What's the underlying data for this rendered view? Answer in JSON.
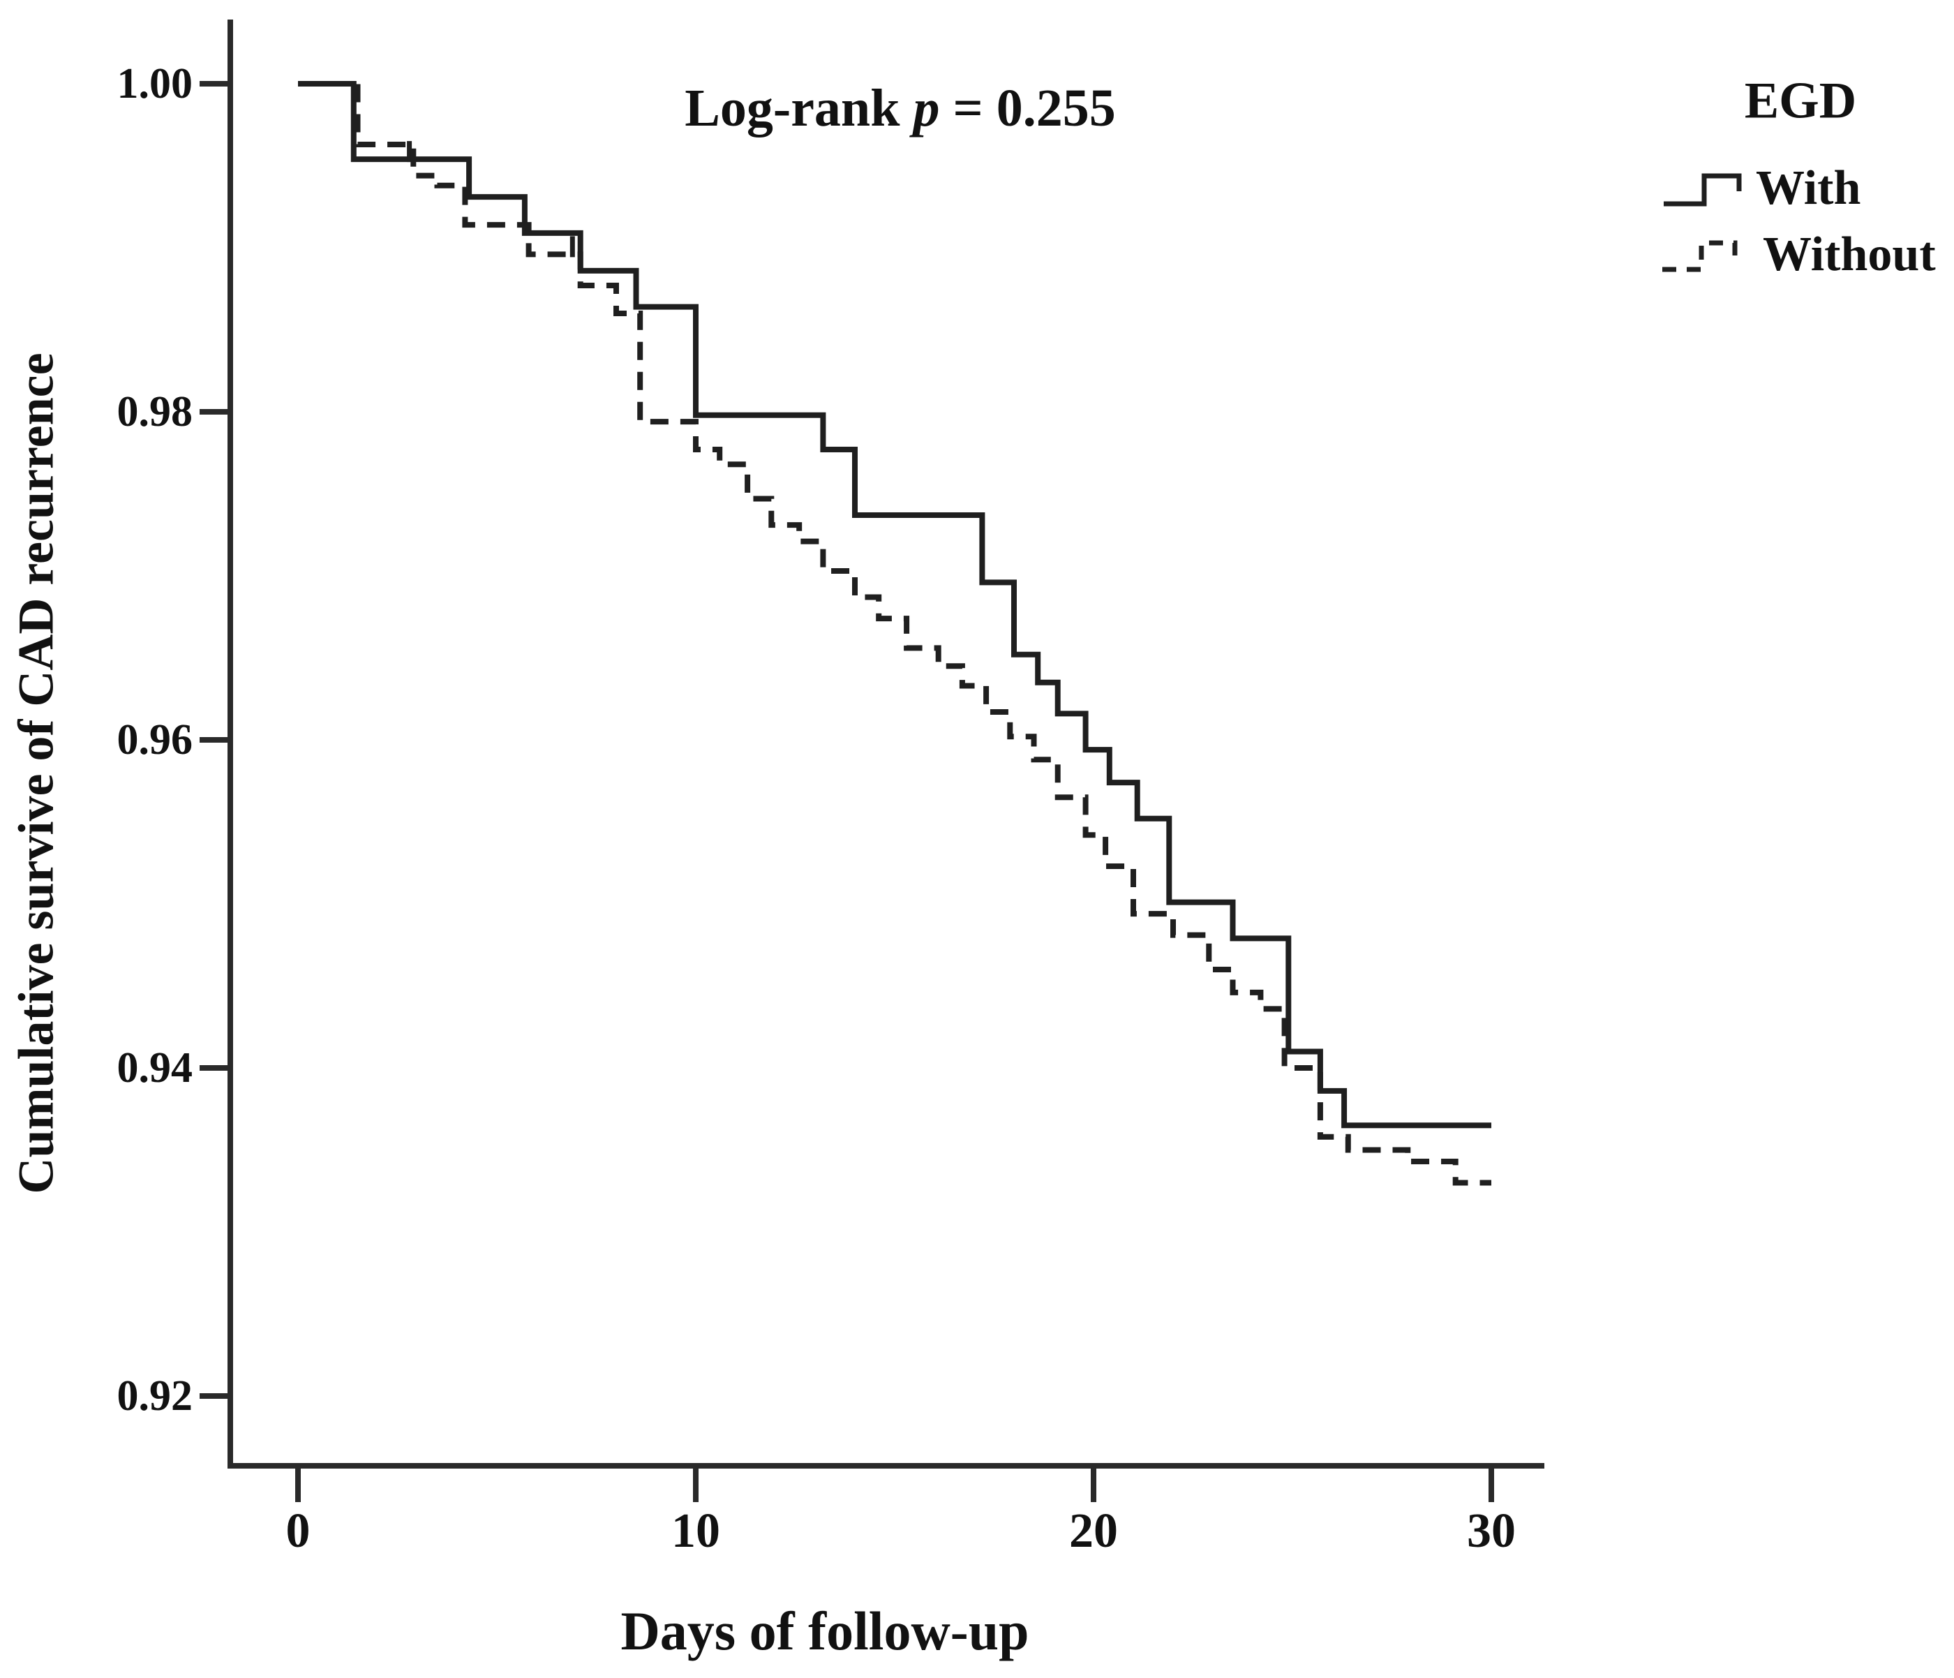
{
  "figure_type": "kaplan-meier-survival-plot",
  "colors": {
    "line": "#1f1f1f",
    "axis": "#2a2a2a",
    "text": "#111111",
    "background": "#ffffff"
  },
  "chart_data": {
    "type": "line",
    "subtype": "step-survival",
    "title": "Log-rank p = 0.255",
    "title_parts": {
      "prefix": "Log-rank ",
      "pvar": "p",
      "suffix": " = 0.255"
    },
    "p_value": 0.255,
    "xlabel": "Days of follow-up",
    "ylabel": "Cumulative survive of CAD recurrence",
    "x_tick_values": [
      0,
      10,
      20,
      30
    ],
    "x_tick_labels": [
      "0",
      "10",
      "20",
      "30"
    ],
    "y_tick_values": [
      1.0,
      0.98,
      0.96,
      0.94,
      0.92
    ],
    "y_tick_labels": [
      "1.00",
      "0.98",
      "0.96",
      "0.94",
      "0.92"
    ],
    "xlim": [
      -1.7,
      31.3
    ],
    "ylim": [
      0.9157,
      1.0039
    ],
    "grid": false,
    "legend": {
      "title": "EGD",
      "position": "top-right-outside",
      "entries": [
        {
          "label": "With",
          "style": "solid"
        },
        {
          "label": "Without",
          "style": "dashed"
        }
      ]
    },
    "series": [
      {
        "name": "With",
        "style": "solid",
        "start": [
          0,
          1.0
        ],
        "steps": [
          [
            1.4,
            0.9954
          ],
          [
            4.3,
            0.9931
          ],
          [
            5.7,
            0.9909
          ],
          [
            7.1,
            0.9886
          ],
          [
            8.5,
            0.9864
          ],
          [
            10.0,
            0.9798
          ],
          [
            13.2,
            0.9777
          ],
          [
            14.0,
            0.9737
          ],
          [
            17.2,
            0.9696
          ],
          [
            18.0,
            0.9652
          ],
          [
            18.6,
            0.9635
          ],
          [
            19.1,
            0.9616
          ],
          [
            19.8,
            0.9594
          ],
          [
            20.4,
            0.9574
          ],
          [
            21.1,
            0.9552
          ],
          [
            21.9,
            0.9501
          ],
          [
            23.5,
            0.9479
          ],
          [
            24.9,
            0.941
          ],
          [
            25.7,
            0.9386
          ],
          [
            26.3,
            0.9365
          ]
        ],
        "end_day": 30.0,
        "censor_marks": [
          [
            2.8,
            0.9954
          ]
        ]
      },
      {
        "name": "Without",
        "style": "dashed",
        "start": [
          0,
          1.0
        ],
        "steps": [
          [
            1.5,
            0.9963
          ],
          [
            2.9,
            0.9944
          ],
          [
            3.5,
            0.9938
          ],
          [
            4.2,
            0.9914
          ],
          [
            5.8,
            0.9896
          ],
          [
            7.1,
            0.9877
          ],
          [
            8.0,
            0.986
          ],
          [
            8.6,
            0.9794
          ],
          [
            10.0,
            0.9777
          ],
          [
            10.6,
            0.9768
          ],
          [
            11.3,
            0.9747
          ],
          [
            11.9,
            0.9731
          ],
          [
            12.6,
            0.9721
          ],
          [
            13.2,
            0.9703
          ],
          [
            14.0,
            0.9687
          ],
          [
            14.6,
            0.9674
          ],
          [
            15.3,
            0.9656
          ],
          [
            16.1,
            0.9645
          ],
          [
            16.7,
            0.9633
          ],
          [
            17.3,
            0.9617
          ],
          [
            17.9,
            0.9602
          ],
          [
            18.5,
            0.9588
          ],
          [
            19.1,
            0.9565
          ],
          [
            19.8,
            0.9542
          ],
          [
            20.3,
            0.9523
          ],
          [
            21.0,
            0.9494
          ],
          [
            22.0,
            0.9481
          ],
          [
            22.9,
            0.946
          ],
          [
            23.5,
            0.9446
          ],
          [
            24.2,
            0.9436
          ],
          [
            24.8,
            0.94
          ],
          [
            25.7,
            0.9358
          ],
          [
            26.4,
            0.935
          ],
          [
            27.9,
            0.9343
          ],
          [
            29.1,
            0.933
          ]
        ],
        "end_day": 30.0,
        "censor_marks": [
          [
            6.9,
            0.9896
          ]
        ]
      }
    ]
  }
}
